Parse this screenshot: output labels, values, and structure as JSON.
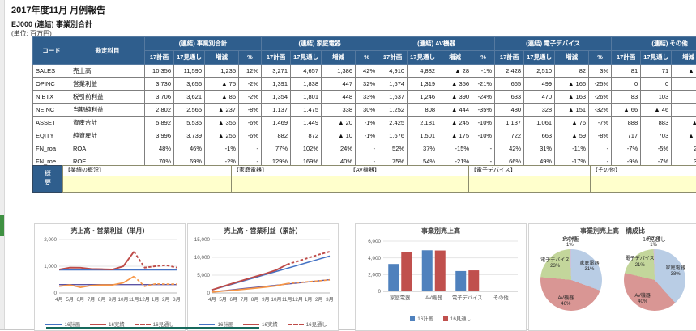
{
  "page": {
    "title": "2017年度11月 月例報告",
    "subtitle": "EJ000 (連結) 事業別合計",
    "unit_note": "(単位: 百万円)"
  },
  "colors": {
    "header_bg": "#2f5e8d",
    "summary_yellow": "#ffffcc",
    "divider_teal": "#17695c",
    "gutter_green": "#3f9142"
  },
  "table": {
    "code_header": "コード",
    "account_header": "勘定科目",
    "groups": [
      "(連結) 事業別合計",
      "(連結) 家庭電器",
      "(連結) AV機器",
      "(連結) 電子デバイス",
      "(連結) その他"
    ],
    "subcolumns": [
      "17計画",
      "17見通し",
      "増減",
      "%"
    ],
    "rows": [
      {
        "code": "SALES",
        "account": "売上高",
        "cells": [
          [
            "10,356",
            "11,590",
            "1,235",
            "12%"
          ],
          [
            "3,271",
            "4,657",
            "1,386",
            "42%"
          ],
          [
            "4,910",
            "4,882",
            "▲ 28",
            "-1%"
          ],
          [
            "2,428",
            "2,510",
            "82",
            "3%"
          ],
          [
            "81",
            "71",
            "▲ 10",
            "-12%"
          ]
        ]
      },
      {
        "code": "OPINC",
        "account": "営業利益",
        "cells": [
          [
            "3,730",
            "3,656",
            "▲ 75",
            "-2%"
          ],
          [
            "1,391",
            "1,838",
            "447",
            "32%"
          ],
          [
            "1,674",
            "1,319",
            "▲ 356",
            "-21%"
          ],
          [
            "665",
            "499",
            "▲ 166",
            "-25%"
          ],
          [
            "0",
            "0",
            "0",
            "-"
          ]
        ]
      },
      {
        "code": "NIBTX",
        "account": "税引前利益",
        "cells": [
          [
            "3,706",
            "3,621",
            "▲ 86",
            "-2%"
          ],
          [
            "1,354",
            "1,801",
            "448",
            "33%"
          ],
          [
            "1,637",
            "1,246",
            "▲ 390",
            "-24%"
          ],
          [
            "633",
            "470",
            "▲ 163",
            "-26%"
          ],
          [
            "83",
            "103",
            "20",
            "24%"
          ]
        ]
      },
      {
        "code": "NEINC",
        "account": "当期純利益",
        "cells": [
          [
            "2,802",
            "2,565",
            "▲ 237",
            "-8%"
          ],
          [
            "1,137",
            "1,475",
            "338",
            "30%"
          ],
          [
            "1,252",
            "808",
            "▲ 444",
            "-35%"
          ],
          [
            "480",
            "328",
            "▲ 151",
            "-32%"
          ],
          [
            "▲ 66",
            "▲ 46",
            "20",
            "-30%"
          ]
        ]
      },
      {
        "code": "ASSET",
        "account": "資産合計",
        "cells": [
          [
            "5,892",
            "5,535",
            "▲ 356",
            "-6%"
          ],
          [
            "1,469",
            "1,449",
            "▲ 20",
            "-1%"
          ],
          [
            "2,425",
            "2,181",
            "▲ 245",
            "-10%"
          ],
          [
            "1,137",
            "1,061",
            "▲ 76",
            "-7%"
          ],
          [
            "888",
            "883",
            "▲ 5",
            "-1%"
          ]
        ]
      },
      {
        "code": "EQITY",
        "account": "純資産計",
        "cells": [
          [
            "3,996",
            "3,739",
            "▲ 256",
            "-6%"
          ],
          [
            "882",
            "872",
            "▲ 10",
            "-1%"
          ],
          [
            "1,676",
            "1,501",
            "▲ 175",
            "-10%"
          ],
          [
            "722",
            "663",
            "▲ 59",
            "-8%"
          ],
          [
            "717",
            "703",
            "▲ 13",
            "-2%"
          ]
        ]
      },
      {
        "code": "FN_roa",
        "account": "ROA",
        "cells": [
          [
            "48%",
            "46%",
            "-1%",
            "-"
          ],
          [
            "77%",
            "102%",
            "24%",
            "-"
          ],
          [
            "52%",
            "37%",
            "-15%",
            "-"
          ],
          [
            "42%",
            "31%",
            "-11%",
            "-"
          ],
          [
            "-7%",
            "-5%",
            "2%",
            "-"
          ]
        ]
      },
      {
        "code": "FN_roe",
        "account": "ROE",
        "cells": [
          [
            "70%",
            "69%",
            "-2%",
            "-"
          ],
          [
            "129%",
            "169%",
            "40%",
            "-"
          ],
          [
            "75%",
            "54%",
            "-21%",
            "-"
          ],
          [
            "66%",
            "49%",
            "-17%",
            "-"
          ],
          [
            "-9%",
            "-7%",
            "3%",
            "-"
          ]
        ]
      }
    ]
  },
  "summary": {
    "label": "概要",
    "boxes": [
      "【業績の概況】",
      "【家庭電器】",
      "【AV機器】",
      "【電子デバイス】",
      "【その他】"
    ]
  },
  "chart_data": [
    {
      "type": "line",
      "title": "売上高・営業利益（単月）",
      "x": [
        "4月",
        "5月",
        "6月",
        "7月",
        "8月",
        "9月",
        "10月",
        "11月",
        "12月",
        "1月",
        "2月",
        "3月"
      ],
      "ylim": [
        0,
        2000
      ],
      "yticks": [
        0,
        1000,
        2000
      ],
      "ytick_labels": [
        "0",
        "1,000",
        "2,000"
      ],
      "grid": true,
      "legend_position": "bottom",
      "series": [
        {
          "name": "16計画",
          "color": "#4472c4",
          "dash": false,
          "width": 1.5,
          "values": [
            863,
            863,
            863,
            863,
            863,
            863,
            863,
            863,
            863,
            863,
            863,
            863
          ]
        },
        {
          "name": "16実績",
          "color": "#be4b48",
          "dash": false,
          "width": 1.9,
          "values": [
            880,
            950,
            945,
            900,
            890,
            880,
            1000,
            1550,
            null,
            null,
            null,
            null
          ]
        },
        {
          "name": "16見通し",
          "color": "#be4b48",
          "dash": true,
          "width": 1.9,
          "values": [
            null,
            null,
            null,
            null,
            null,
            null,
            null,
            1550,
            950,
            1000,
            1040,
            950
          ]
        },
        {
          "name": "",
          "color": "#5d54a4",
          "dash": false,
          "width": 1.4,
          "values": [
            311,
            311,
            311,
            311,
            311,
            311,
            311,
            311,
            311,
            311,
            311,
            311
          ]
        },
        {
          "name": "",
          "color": "#f79646",
          "dash": false,
          "width": 1.7,
          "values": [
            250,
            300,
            210,
            280,
            300,
            300,
            380,
            620,
            null,
            null,
            null,
            null
          ]
        },
        {
          "name": "",
          "color": "#f79646",
          "dash": true,
          "width": 1.7,
          "values": [
            null,
            null,
            null,
            null,
            null,
            null,
            null,
            620,
            250,
            340,
            330,
            330
          ]
        }
      ],
      "legend": [
        {
          "label": "16計画",
          "color": "#4472c4",
          "dash": false
        },
        {
          "label": "16実績",
          "color": "#be4b48",
          "dash": false
        },
        {
          "label": "16見通し",
          "color": "#be4b48",
          "dash": true
        }
      ]
    },
    {
      "type": "line",
      "title": "売上高・営業利益（累計）",
      "x": [
        "4月",
        "5月",
        "6月",
        "7月",
        "8月",
        "9月",
        "10月",
        "11月",
        "12月",
        "1月",
        "2月",
        "3月"
      ],
      "ylim": [
        0,
        15000
      ],
      "yticks": [
        0,
        5000,
        10000,
        15000
      ],
      "ytick_labels": [
        "0",
        "5,000",
        "10,000",
        "15,000"
      ],
      "grid": true,
      "legend_position": "bottom",
      "series": [
        {
          "name": "16計画",
          "color": "#4472c4",
          "dash": false,
          "width": 1.5,
          "values": [
            863,
            1726,
            2589,
            3452,
            4315,
            5178,
            6041,
            6904,
            7767,
            8630,
            9493,
            10356
          ]
        },
        {
          "name": "16実績",
          "color": "#be4b48",
          "dash": false,
          "width": 1.9,
          "values": [
            880,
            1830,
            2775,
            3675,
            4565,
            5445,
            6445,
            7995,
            null,
            null,
            null,
            null
          ]
        },
        {
          "name": "16見通し",
          "color": "#be4b48",
          "dash": true,
          "width": 1.9,
          "values": [
            null,
            null,
            null,
            null,
            null,
            null,
            null,
            7995,
            8900,
            9850,
            10800,
            11590
          ]
        },
        {
          "name": "",
          "color": "#5d54a4",
          "dash": false,
          "width": 1.4,
          "values": [
            311,
            622,
            933,
            1244,
            1555,
            1866,
            2177,
            2488,
            2799,
            3110,
            3421,
            3730
          ]
        },
        {
          "name": "",
          "color": "#f79646",
          "dash": false,
          "width": 1.7,
          "values": [
            250,
            550,
            760,
            1040,
            1340,
            1640,
            2020,
            2640,
            null,
            null,
            null,
            null
          ]
        },
        {
          "name": "",
          "color": "#f79646",
          "dash": true,
          "width": 1.7,
          "values": [
            null,
            null,
            null,
            null,
            null,
            null,
            null,
            2640,
            2890,
            3160,
            3420,
            3656
          ]
        }
      ],
      "legend": [
        {
          "label": "16計画",
          "color": "#4472c4",
          "dash": false
        },
        {
          "label": "16実績",
          "color": "#be4b48",
          "dash": false
        },
        {
          "label": "16見通し",
          "color": "#be4b48",
          "dash": true
        }
      ]
    },
    {
      "type": "bar",
      "title": "事業別売上高",
      "categories": [
        "家庭電器",
        "AV機器",
        "電子デバイス",
        "その他"
      ],
      "ylim": [
        0,
        6000
      ],
      "yticks": [
        0,
        2000,
        4000,
        6000
      ],
      "ytick_labels": [
        "0",
        "2,000",
        "4,000",
        "6,000"
      ],
      "grid": true,
      "legend_position": "bottom",
      "series": [
        {
          "name": "16計画",
          "color": "#4f81bd",
          "values": [
            3271,
            4910,
            2428,
            81
          ]
        },
        {
          "name": "16見通し",
          "color": "#c0504d",
          "values": [
            4657,
            4882,
            2510,
            71
          ]
        }
      ]
    },
    {
      "type": "pie",
      "title": "事業別売上高　構成比",
      "pies": [
        {
          "title": "16計画",
          "slices": [
            {
              "label": "家庭電器",
              "pct": 30.6,
              "pct_label": "31%",
              "color": "#b9cde5"
            },
            {
              "label": "AV機器",
              "pct": 45.9,
              "pct_label": "46%",
              "color": "#d99694"
            },
            {
              "label": "電子デバイス",
              "pct": 22.7,
              "pct_label": "23%",
              "color": "#c3d69b"
            },
            {
              "label": "その他",
              "pct": 0.8,
              "pct_label": "1%",
              "color": "#ccc1da"
            }
          ]
        },
        {
          "title": "16見通し",
          "slices": [
            {
              "label": "家庭電器",
              "pct": 38.4,
              "pct_label": "38%",
              "color": "#b9cde5"
            },
            {
              "label": "AV機器",
              "pct": 40.3,
              "pct_label": "40%",
              "color": "#d99694"
            },
            {
              "label": "電子デバイス",
              "pct": 20.7,
              "pct_label": "21%",
              "color": "#c3d69b"
            },
            {
              "label": "その他",
              "pct": 0.6,
              "pct_label": "1%",
              "color": "#ccc1da"
            }
          ]
        }
      ]
    }
  ]
}
